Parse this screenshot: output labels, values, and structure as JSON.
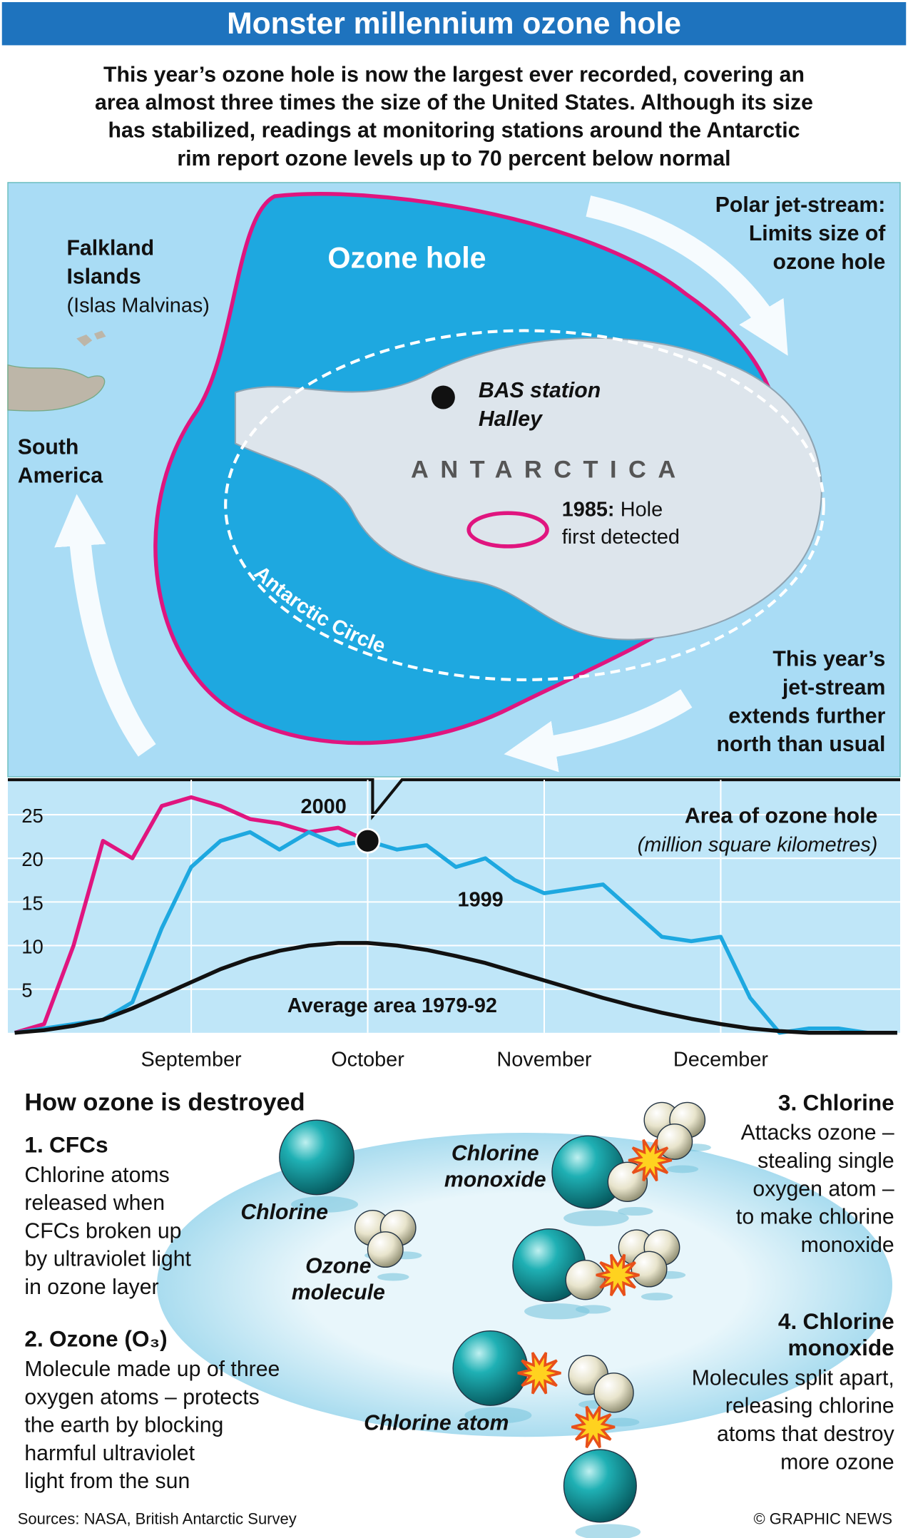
{
  "header": {
    "title": "Monster millennium ozone hole",
    "intro": [
      "This year’s ozone hole is now the largest ever recorded, covering an",
      "area almost three times the size of the United States. Although its size",
      "has stabilized, readings at monitoring stations around the Antarctic",
      "rim report ozone levels up to 70 percent below normal"
    ]
  },
  "map": {
    "ozone_hole": "Ozone hole",
    "jet_stream": [
      "Polar jet-stream:",
      "Limits size of",
      "ozone hole"
    ],
    "falkland": [
      "Falkland",
      "Islands",
      "(Islas Malvinas)"
    ],
    "south_america": [
      "South",
      "America"
    ],
    "station": [
      "BAS station",
      "Halley"
    ],
    "continent": "ANTARCTICA",
    "detected": {
      "year": "1985:",
      "text": [
        "Hole",
        "first detected"
      ]
    },
    "circle": "Antarctic Circle",
    "this_year": [
      "This year’s",
      "jet-stream",
      "extends further",
      "north than usual"
    ]
  },
  "chart_data": {
    "type": "line",
    "title": "Area of ozone hole",
    "subtitle": "(million square kilometres)",
    "categories": [
      null,
      null,
      null,
      null,
      null,
      null,
      "September",
      null,
      null,
      null,
      null,
      null,
      "October",
      null,
      null,
      null,
      null,
      null,
      "November",
      null,
      null,
      null,
      null,
      null,
      "December",
      null,
      null,
      null,
      null,
      null,
      null
    ],
    "series": [
      {
        "name": "2000",
        "color": "#e0157f",
        "values": [
          0,
          1,
          10,
          22,
          20,
          26,
          27,
          26,
          24.5,
          24,
          23,
          23.5,
          22,
          null,
          null,
          null,
          null,
          null,
          null,
          null,
          null,
          null,
          null,
          null,
          null,
          null,
          null,
          null,
          null,
          null,
          null
        ]
      },
      {
        "name": "1999",
        "color": "#1ea8e0",
        "values": [
          0,
          0.5,
          1,
          1.5,
          3.5,
          12,
          19,
          22,
          23,
          21,
          23,
          21.5,
          22,
          21,
          21.5,
          19,
          20,
          17.5,
          16,
          16.5,
          17,
          14,
          11,
          10.5,
          11,
          4,
          0,
          0.5,
          0.5,
          0,
          0
        ]
      },
      {
        "name": "Average area 1979-92",
        "color": "#111111",
        "values": [
          0,
          0.3,
          0.8,
          1.5,
          2.8,
          4.3,
          5.8,
          7.3,
          8.5,
          9.4,
          10,
          10.3,
          10.3,
          10,
          9.5,
          8.8,
          8,
          7,
          6,
          5,
          4,
          3.1,
          2.3,
          1.6,
          1,
          0.5,
          0.2,
          0,
          0,
          0,
          0
        ]
      }
    ],
    "ylim": [
      0,
      29
    ],
    "yticks": [
      5,
      10,
      15,
      20,
      25
    ],
    "grid": true
  },
  "process": {
    "title": "How ozone is destroyed",
    "steps": [
      {
        "number": "1.",
        "heading": [
          "CFCs"
        ],
        "lines": [
          "Chlorine atoms",
          "released when",
          "CFCs broken up",
          "by ultraviolet light",
          "in ozone layer"
        ]
      },
      {
        "number": "2.",
        "heading": [
          "Ozone (O₃)"
        ],
        "lines": [
          "Molecule made up of three",
          "oxygen atoms – protects",
          "the earth by blocking",
          "harmful ultraviolet",
          "light from the sun"
        ]
      },
      {
        "number": "3.",
        "heading": [
          "Chlorine"
        ],
        "lines": [
          "Attacks ozone –",
          "stealing single",
          "oxygen atom –",
          "to make chlorine",
          "monoxide"
        ]
      },
      {
        "number": "4.",
        "heading": [
          "Chlorine",
          "monoxide"
        ],
        "lines": [
          "Molecules split apart,",
          "releasing chlorine",
          "atoms that destroy",
          "more ozone"
        ]
      }
    ],
    "labels": {
      "chlorine": "Chlorine",
      "ozone": [
        "Ozone",
        "molecule"
      ],
      "monoxide": [
        "Chlorine",
        "monoxide"
      ],
      "atom": "Chlorine atom"
    }
  },
  "footer": {
    "sources": "Sources: NASA, British Antarctic Survey",
    "credit": "© GRAPHIC NEWS"
  }
}
